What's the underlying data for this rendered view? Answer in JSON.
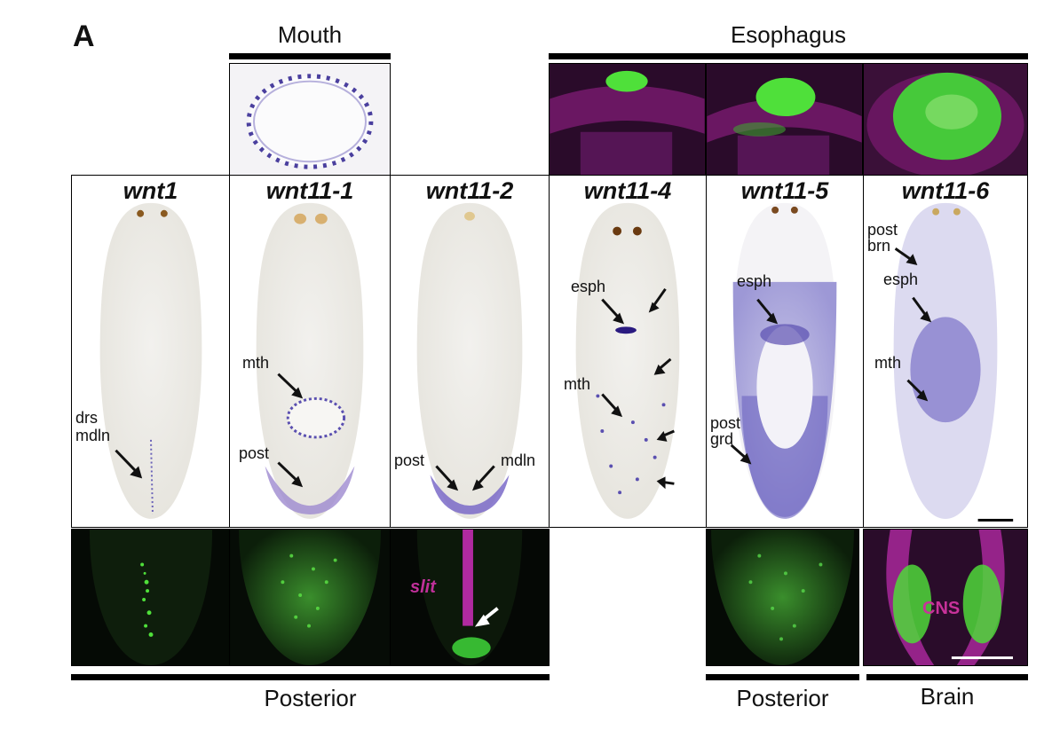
{
  "figure": {
    "panel_letter": "A",
    "groups": {
      "mouth": "Mouth",
      "esophagus": "Esophagus",
      "posterior_left": "Posterior",
      "posterior_right": "Posterior",
      "brain": "Brain"
    },
    "genes": [
      "wnt1",
      "wnt11-1",
      "wnt11-2",
      "wnt11-4",
      "wnt11-5",
      "wnt11-6"
    ],
    "annotations": {
      "wnt1": {
        "drs": "drs",
        "mdln": "mdln"
      },
      "wnt11_1": {
        "mth": "mth",
        "post": "post"
      },
      "wnt11_2": {
        "post": "post",
        "mdln": "mdln"
      },
      "wnt11_4": {
        "esph": "esph",
        "mth": "mth"
      },
      "wnt11_5": {
        "esph": "esph",
        "post": "post",
        "grd": "grd"
      },
      "wnt11_6": {
        "post": "post",
        "brn": "brn",
        "esph": "esph",
        "mth": "mth"
      }
    },
    "insets": {
      "slit": "slit",
      "cns": "CNS"
    },
    "colors": {
      "ish_stain": "#5a4fb0",
      "fluor_green": "#3fd63a",
      "fluor_magenta": "#a0208c"
    }
  }
}
